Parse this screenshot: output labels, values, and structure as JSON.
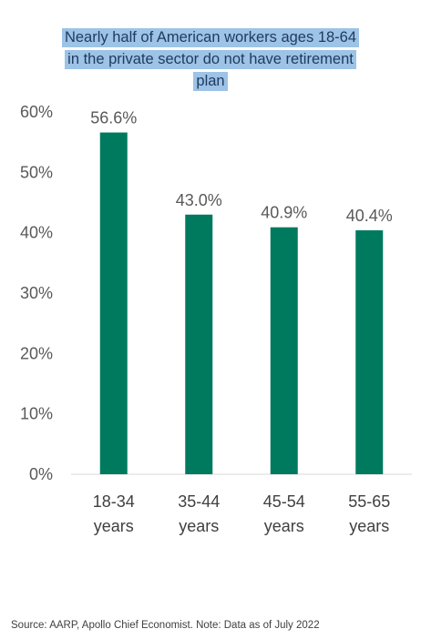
{
  "chart_data": {
    "type": "bar",
    "title_lines": [
      "Nearly half of American workers ages 18-64",
      "in the private sector do not have retirement",
      "plan"
    ],
    "categories": [
      [
        "18-34",
        "years"
      ],
      [
        "35-44",
        "years"
      ],
      [
        "45-54",
        "years"
      ],
      [
        "55-65",
        "years"
      ]
    ],
    "values": [
      56.6,
      43.0,
      40.9,
      40.4
    ],
    "data_labels": [
      "56.6%",
      "43.0%",
      "40.9%",
      "40.4%"
    ],
    "y_ticks": [
      "0%",
      "10%",
      "20%",
      "30%",
      "40%",
      "50%",
      "60%"
    ],
    "ylim": [
      0,
      60
    ],
    "grid": false,
    "bar_color": "#007A5E",
    "source": "Source: AARP, Apollo Chief Economist. Note: Data as of July 2022"
  }
}
